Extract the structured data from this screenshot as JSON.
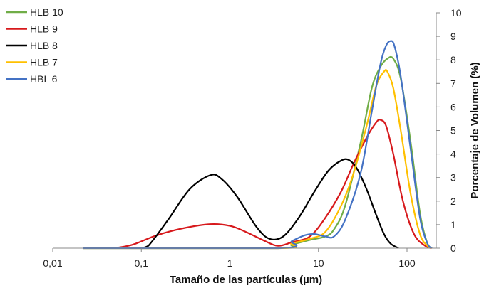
{
  "chart_data": {
    "type": "line",
    "xlabel": "Tamaño de las partículas (µm)",
    "ylabel": "Porcentaje de  Volumen (%)",
    "xscale": "log",
    "xlim": [
      0.01,
      200
    ],
    "ylim": [
      0,
      10
    ],
    "x_ticks": [
      0.01,
      0.1,
      1,
      10,
      100
    ],
    "x_tick_labels": [
      "0,01",
      "0,1",
      "1",
      "10",
      "100"
    ],
    "y_ticks": [
      0,
      1,
      2,
      3,
      4,
      5,
      6,
      7,
      8,
      9,
      10
    ],
    "y_tick_labels": [
      "0",
      "1",
      "2",
      "3",
      "4",
      "5",
      "6",
      "7",
      "8",
      "9",
      "10"
    ],
    "y_axis_side": "right",
    "grid": false,
    "legend_position": "top-left",
    "series": [
      {
        "name": "HLB 10",
        "color": "#70ad47",
        "points": [
          [
            0.022,
            0
          ],
          [
            3.5,
            0
          ],
          [
            5,
            0.15
          ],
          [
            8,
            0.35
          ],
          [
            12,
            0.5
          ],
          [
            15,
            0.8
          ],
          [
            20,
            1.8
          ],
          [
            30,
            4.5
          ],
          [
            40,
            6.8
          ],
          [
            50,
            7.7
          ],
          [
            60,
            8.05
          ],
          [
            70,
            8.05
          ],
          [
            85,
            7.2
          ],
          [
            110,
            4.5
          ],
          [
            140,
            1.5
          ],
          [
            170,
            0.2
          ],
          [
            190,
            0
          ]
        ]
      },
      {
        "name": "HLB 9",
        "color": "#d7191c",
        "points": [
          [
            0.05,
            0
          ],
          [
            0.08,
            0.15
          ],
          [
            0.15,
            0.55
          ],
          [
            0.3,
            0.85
          ],
          [
            0.6,
            1.02
          ],
          [
            1.0,
            0.95
          ],
          [
            1.5,
            0.7
          ],
          [
            2.5,
            0.3
          ],
          [
            3.5,
            0.1
          ],
          [
            5,
            0.25
          ],
          [
            8,
            0.5
          ],
          [
            12,
            1.3
          ],
          [
            18,
            2.4
          ],
          [
            25,
            3.6
          ],
          [
            35,
            4.7
          ],
          [
            45,
            5.35
          ],
          [
            50,
            5.45
          ],
          [
            58,
            5.2
          ],
          [
            70,
            4.0
          ],
          [
            90,
            2.0
          ],
          [
            120,
            0.6
          ],
          [
            160,
            0.1
          ],
          [
            190,
            0
          ]
        ]
      },
      {
        "name": "HLB 8",
        "color": "#000000",
        "points": [
          [
            0.1,
            0
          ],
          [
            0.12,
            0.1
          ],
          [
            0.2,
            1.2
          ],
          [
            0.35,
            2.5
          ],
          [
            0.6,
            3.1
          ],
          [
            0.8,
            2.95
          ],
          [
            1.2,
            2.2
          ],
          [
            2.0,
            0.9
          ],
          [
            2.8,
            0.4
          ],
          [
            4,
            0.5
          ],
          [
            6,
            1.3
          ],
          [
            9,
            2.4
          ],
          [
            13,
            3.3
          ],
          [
            18,
            3.72
          ],
          [
            22,
            3.75
          ],
          [
            27,
            3.4
          ],
          [
            35,
            2.5
          ],
          [
            45,
            1.4
          ],
          [
            55,
            0.6
          ],
          [
            65,
            0.2
          ],
          [
            80,
            0
          ]
        ]
      },
      {
        "name": "HLB 7",
        "color": "#ffc000",
        "points": [
          [
            0.022,
            0
          ],
          [
            3.5,
            0
          ],
          [
            5,
            0.2
          ],
          [
            8,
            0.4
          ],
          [
            12,
            0.7
          ],
          [
            18,
            1.8
          ],
          [
            25,
            3.2
          ],
          [
            35,
            5.2
          ],
          [
            45,
            6.9
          ],
          [
            55,
            7.5
          ],
          [
            60,
            7.5
          ],
          [
            70,
            6.8
          ],
          [
            85,
            5.0
          ],
          [
            110,
            2.3
          ],
          [
            140,
            0.6
          ],
          [
            170,
            0.1
          ],
          [
            190,
            0
          ]
        ]
      },
      {
        "name": "HBL 6",
        "color": "#4472c4",
        "points": [
          [
            0.022,
            0
          ],
          [
            3.5,
            0
          ],
          [
            5,
            0.3
          ],
          [
            7,
            0.55
          ],
          [
            9,
            0.6
          ],
          [
            12,
            0.5
          ],
          [
            15,
            0.5
          ],
          [
            20,
            1.2
          ],
          [
            30,
            3.2
          ],
          [
            40,
            5.8
          ],
          [
            50,
            7.8
          ],
          [
            58,
            8.6
          ],
          [
            65,
            8.8
          ],
          [
            72,
            8.6
          ],
          [
            85,
            7.3
          ],
          [
            110,
            4.2
          ],
          [
            140,
            1.3
          ],
          [
            170,
            0.2
          ],
          [
            190,
            0
          ]
        ]
      }
    ]
  }
}
